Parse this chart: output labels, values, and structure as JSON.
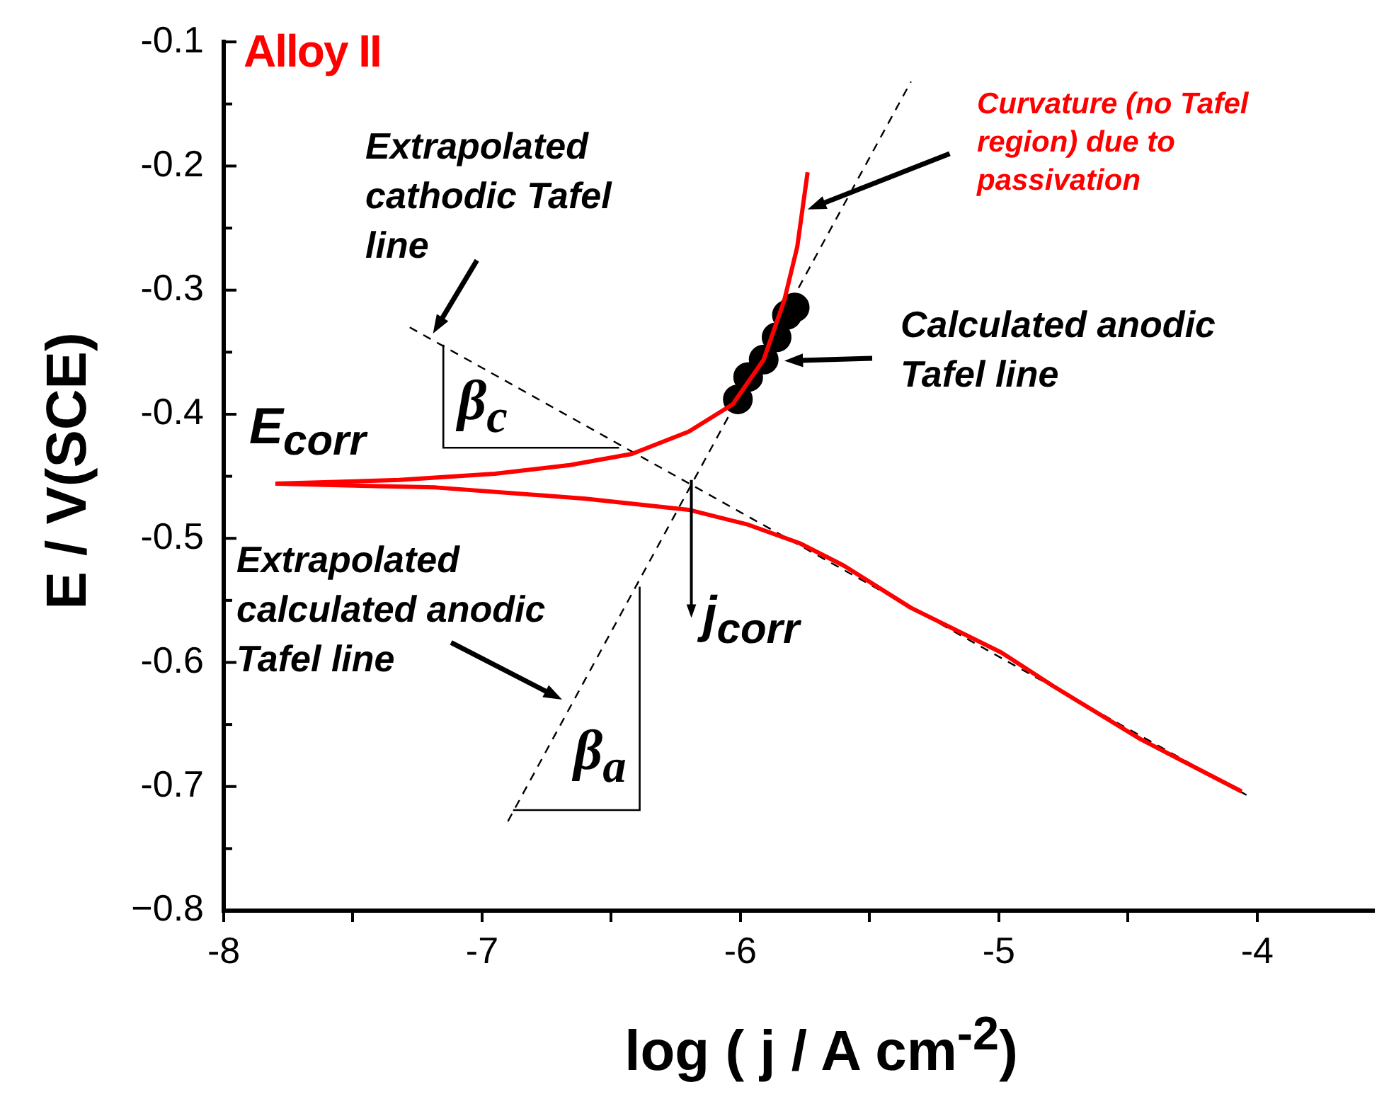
{
  "chart_data": {
    "type": "line",
    "title": "Alloy II",
    "xlabel": "log ( j / A cm$^{-2}$)",
    "ylabel": "E / V(SCE)",
    "xlim": [
      -8,
      -3.55
    ],
    "xticks": [
      -8,
      {
        "value": -7.5,
        "label": null
      },
      -7,
      {
        "value": -6.5,
        "label": null
      },
      -6,
      {
        "value": -5.5,
        "label": null
      },
      -5,
      {
        "value": -4.5,
        "label": null
      },
      -4
    ],
    "ylim": [
      -0.8,
      -0.1
    ],
    "yticks": [
      {
        "value": -0.8,
        "label": "−0.8"
      },
      {
        "value": -0.75,
        "label": null
      },
      -0.7,
      {
        "value": -0.65,
        "label": null
      },
      -0.6,
      {
        "value": -0.55,
        "label": null
      },
      -0.5,
      {
        "value": -0.45,
        "label": null
      },
      -0.4,
      {
        "value": -0.35,
        "label": null
      },
      -0.3,
      {
        "value": -0.25,
        "label": null
      },
      -0.2,
      {
        "value": -0.15,
        "label": null
      },
      -0.1
    ],
    "series": [
      {
        "type": "line",
        "color": "#ff0000",
        "marker": "none",
        "line_style": "solid",
        "x": [
          -7.8,
          -7.32,
          -6.95,
          -6.66,
          -6.42,
          -6.2,
          -6.03,
          -5.91,
          -5.83,
          -5.78,
          -5.74
        ],
        "values": [
          -0.456,
          -0.453,
          -0.448,
          -0.441,
          -0.432,
          -0.414,
          -0.392,
          -0.356,
          -0.308,
          -0.265,
          -0.205
        ]
      },
      {
        "type": "line",
        "color": "#ff0000",
        "marker": "none",
        "line_style": "solid",
        "x": [
          -7.8,
          -7.18,
          -6.6,
          -6.2,
          -5.97,
          -5.77,
          -5.6,
          -5.34,
          -4.99,
          -4.79,
          -4.45,
          -4.06
        ],
        "values": [
          -0.456,
          -0.459,
          -0.468,
          -0.477,
          -0.489,
          -0.504,
          -0.522,
          -0.556,
          -0.592,
          -0.619,
          -0.662,
          -0.704
        ]
      },
      {
        "type": "line",
        "color": "#000000",
        "marker": "none",
        "line_style": "dashed",
        "x": [
          -6.9,
          -5.34
        ],
        "values": [
          -0.728,
          -0.132
        ]
      },
      {
        "type": "line",
        "color": "#000000",
        "marker": "none",
        "line_style": "dashed",
        "x": [
          -7.28,
          -4.04
        ],
        "values": [
          -0.33,
          -0.707
        ]
      },
      {
        "type": "scatter",
        "color": "#000000",
        "marker": "circle",
        "x": [
          -6.01,
          -5.97,
          -5.91,
          -5.86,
          -5.82,
          -5.79
        ],
        "values": [
          -0.388,
          -0.37,
          -0.356,
          -0.338,
          -0.32,
          -0.314
        ]
      }
    ],
    "annotations": [
      "Extrapolated cathodic Tafel line",
      "Curvature (no Tafel region) due to passivation",
      "Calculated anodic Tafel line",
      "E$_{corr}$",
      "Extrapolated calculated anodic Tafel line",
      {
        "text": "j$_{corr}$",
        "x": -6.19,
        "y": -0.453
      },
      {
        "text": "β$_{c}$",
        "x": -6.81,
        "y": -0.385
      },
      {
        "text": "β$_{a}$",
        "x": -6.635,
        "y": -0.627
      }
    ]
  }
}
